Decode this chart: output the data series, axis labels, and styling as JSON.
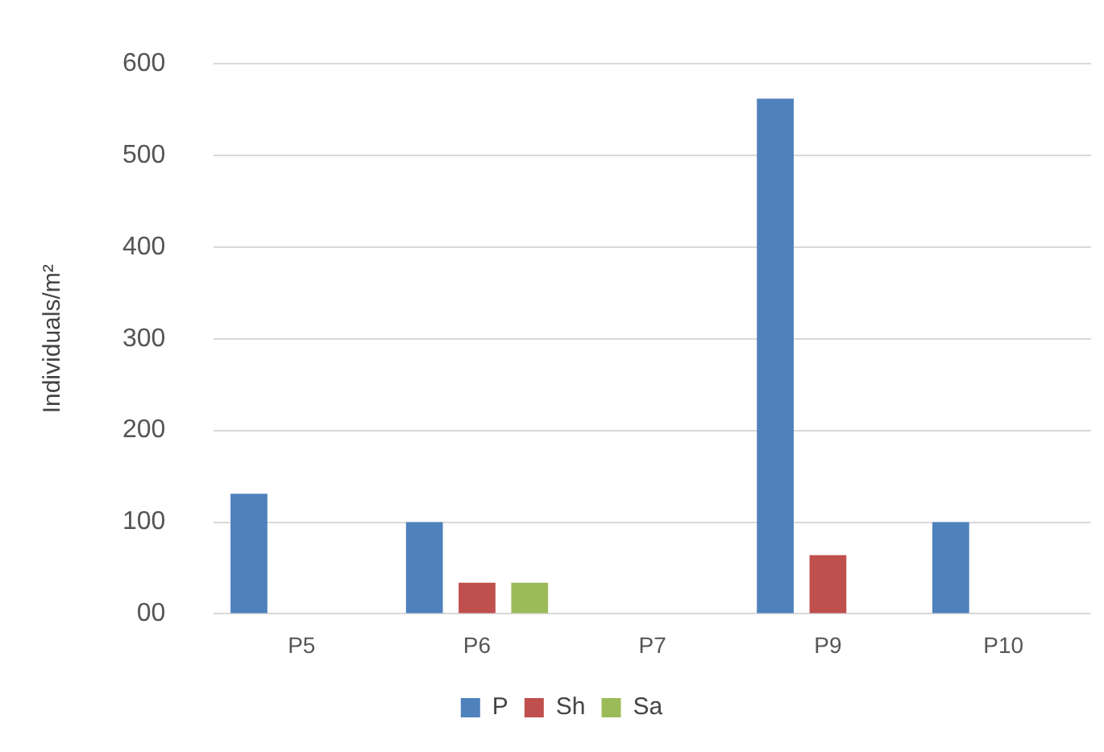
{
  "chart_data": {
    "type": "bar",
    "ylabel": "Individuals/m²",
    "categories": [
      "P5",
      "P6",
      "P7",
      "P9",
      "P10"
    ],
    "series": [
      {
        "name": "P",
        "color": "#4f81bd",
        "values": [
          131,
          100,
          0,
          562,
          100
        ]
      },
      {
        "name": "Sh",
        "color": "#c0504d",
        "values": [
          0,
          34,
          0,
          64,
          0
        ]
      },
      {
        "name": "Sa",
        "color": "#9bbb59",
        "values": [
          0,
          34,
          0,
          0,
          0
        ]
      }
    ],
    "ylim": [
      0,
      600
    ],
    "yticks": [
      {
        "value": 0,
        "label": "00"
      },
      100,
      200,
      300,
      400,
      500,
      600
    ],
    "grid": "y",
    "legend": "bottom"
  }
}
